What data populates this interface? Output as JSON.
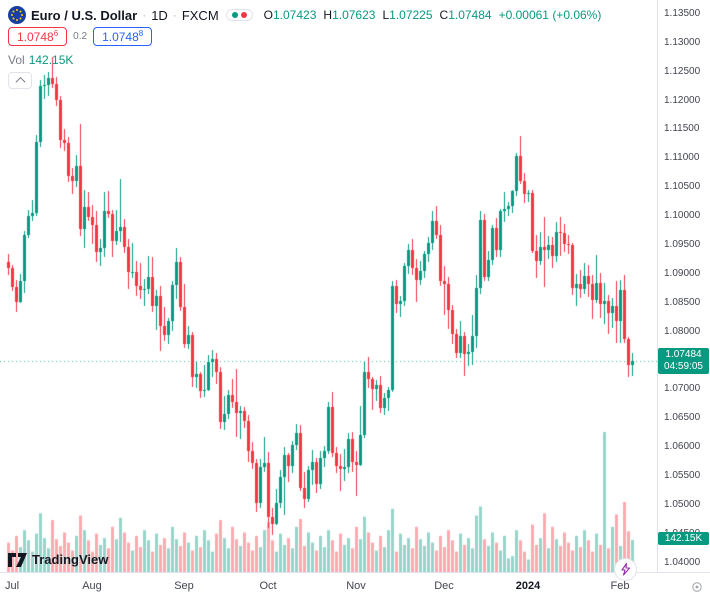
{
  "header": {
    "symbol": "Euro / U.S. Dollar",
    "sep": "·",
    "interval": "1D",
    "exchange": "FXCM",
    "ohlc": {
      "o_label": "O",
      "o": "1.07423",
      "h_label": "H",
      "h": "1.07623",
      "l_label": "L",
      "l": "1.07225",
      "c_label": "C",
      "c": "1.07484",
      "change": "+0.00061 (+0.06%)"
    },
    "sell": {
      "value": "1.0748",
      "sup": "6"
    },
    "spread": "0.2",
    "buy": {
      "value": "1.0748",
      "sup": "8"
    },
    "vol_label": "Vol",
    "vol_value": "142.15K"
  },
  "badges": {
    "last_price": "1.07484",
    "countdown": "04:59:05",
    "volume": "142.15K"
  },
  "footer": {
    "logo_text": "TradingView"
  },
  "colors": {
    "up": "#089981",
    "down": "#f23645",
    "sell": "#f23645",
    "buy": "#2962ff",
    "badge": "#089981",
    "bolt": "#9c27b0"
  },
  "chart_data": {
    "type": "candlestick",
    "title": "Euro / U.S. Dollar 1D FXCM",
    "legend_position": "top-left",
    "grid": false,
    "last_price": 1.07484,
    "y_axis": {
      "min": 1.0384,
      "max": 1.1374,
      "tick_labels": [
        "1.13500",
        "1.13000",
        "1.12500",
        "1.12000",
        "1.11500",
        "1.11000",
        "1.10500",
        "1.10000",
        "1.09500",
        "1.09000",
        "1.08500",
        "1.08000",
        "1.07500",
        "1.07000",
        "1.06500",
        "1.06000",
        "1.05500",
        "1.05000",
        "1.04500",
        "1.04000"
      ]
    },
    "x_ticks": [
      {
        "label": "Jul",
        "index": 0
      },
      {
        "label": "Aug",
        "index": 21
      },
      {
        "label": "Sep",
        "index": 44
      },
      {
        "label": "Oct",
        "index": 65
      },
      {
        "label": "Nov",
        "index": 87
      },
      {
        "label": "Dec",
        "index": 109
      },
      {
        "label": "2024",
        "index": 130,
        "major": true
      },
      {
        "label": "Feb",
        "index": 153
      }
    ],
    "candles": [
      [
        1.092,
        1.0935,
        1.0898,
        1.091
      ],
      [
        1.091,
        1.0916,
        1.087,
        1.0878
      ],
      [
        1.0878,
        1.089,
        1.0834,
        1.0852
      ],
      [
        1.0852,
        1.0899,
        1.085,
        1.0888
      ],
      [
        1.0888,
        1.0975,
        1.0867,
        1.0968
      ],
      [
        1.0968,
        1.101,
        1.0962,
        1.1
      ],
      [
        1.1,
        1.1027,
        1.0992,
        1.1005
      ],
      [
        1.1005,
        1.114,
        1.1001,
        1.1128
      ],
      [
        1.1128,
        1.1236,
        1.112,
        1.1226
      ],
      [
        1.1226,
        1.1245,
        1.1203,
        1.1227
      ],
      [
        1.1227,
        1.1249,
        1.1208,
        1.1239
      ],
      [
        1.1239,
        1.1276,
        1.1222,
        1.1228
      ],
      [
        1.1228,
        1.124,
        1.119,
        1.1201
      ],
      [
        1.1201,
        1.1207,
        1.1118,
        1.1131
      ],
      [
        1.1131,
        1.115,
        1.1112,
        1.1126
      ],
      [
        1.1126,
        1.1137,
        1.1059,
        1.107
      ],
      [
        1.107,
        1.1084,
        1.1039,
        1.106
      ],
      [
        1.106,
        1.1106,
        1.105,
        1.1087
      ],
      [
        1.1087,
        1.1159,
        1.0966,
        1.0977
      ],
      [
        1.0977,
        1.1046,
        1.0944,
        1.1016
      ],
      [
        1.1016,
        1.1041,
        1.0992,
        1.0998
      ],
      [
        1.0998,
        1.102,
        1.0952,
        1.0984
      ],
      [
        1.0984,
        1.1008,
        1.092,
        1.0937
      ],
      [
        1.0937,
        1.096,
        1.0913,
        1.0944
      ],
      [
        1.0944,
        1.1042,
        1.093,
        1.1009
      ],
      [
        1.1009,
        1.1044,
        1.0996,
        1.1003
      ],
      [
        1.1003,
        1.101,
        1.0929,
        1.0957
      ],
      [
        1.0957,
        1.1011,
        1.095,
        1.0975
      ],
      [
        1.0975,
        1.1064,
        1.0955,
        1.0981
      ],
      [
        1.0981,
        1.0995,
        1.0936,
        1.0947
      ],
      [
        1.0947,
        1.096,
        1.0874,
        1.0904
      ],
      [
        1.0904,
        1.0953,
        1.0892,
        1.0904
      ],
      [
        1.0904,
        1.0922,
        1.0862,
        1.0879
      ],
      [
        1.0879,
        1.0918,
        1.0856,
        1.0872
      ],
      [
        1.0872,
        1.0891,
        1.0845,
        1.0873
      ],
      [
        1.0873,
        1.0931,
        1.0866,
        1.0894
      ],
      [
        1.0894,
        1.093,
        1.0834,
        1.0845
      ],
      [
        1.0845,
        1.0872,
        1.0802,
        1.0861
      ],
      [
        1.0861,
        1.0879,
        1.0766,
        1.081
      ],
      [
        1.081,
        1.0842,
        1.0783,
        1.0794
      ],
      [
        1.0794,
        1.0823,
        1.0779,
        1.0818
      ],
      [
        1.0818,
        1.0888,
        1.0801,
        1.088
      ],
      [
        1.088,
        1.0945,
        1.0856,
        1.0921
      ],
      [
        1.0921,
        1.0929,
        1.0835,
        1.0843
      ],
      [
        1.0843,
        1.0882,
        1.0772,
        1.0779
      ],
      [
        1.0779,
        1.081,
        1.077,
        1.0794
      ],
      [
        1.0794,
        1.08,
        1.0705,
        1.0722
      ],
      [
        1.0722,
        1.0748,
        1.0702,
        1.0726
      ],
      [
        1.0726,
        1.0731,
        1.0686,
        1.0697
      ],
      [
        1.0697,
        1.0742,
        1.0687,
        1.0699
      ],
      [
        1.0699,
        1.0759,
        1.0698,
        1.0748
      ],
      [
        1.0748,
        1.0768,
        1.0721,
        1.0753
      ],
      [
        1.0753,
        1.0763,
        1.071,
        1.073
      ],
      [
        1.073,
        1.0738,
        1.0632,
        1.0643
      ],
      [
        1.0643,
        1.0688,
        1.063,
        1.0657
      ],
      [
        1.0657,
        1.0699,
        1.0649,
        1.0691
      ],
      [
        1.0691,
        1.0718,
        1.0668,
        1.0679
      ],
      [
        1.0679,
        1.0736,
        1.0617,
        1.066
      ],
      [
        1.066,
        1.0672,
        1.0615,
        1.0662
      ],
      [
        1.0662,
        1.067,
        1.0633,
        1.0645
      ],
      [
        1.0645,
        1.0656,
        1.0575,
        1.0593
      ],
      [
        1.0593,
        1.0609,
        1.0562,
        1.0572
      ],
      [
        1.0572,
        1.058,
        1.0488,
        1.0503
      ],
      [
        1.0503,
        1.0579,
        1.0495,
        1.0566
      ],
      [
        1.0566,
        1.0617,
        1.0557,
        1.0573
      ],
      [
        1.0573,
        1.0592,
        1.046,
        1.0479
      ],
      [
        1.0479,
        1.0494,
        1.0448,
        1.0467
      ],
      [
        1.0467,
        1.0528,
        1.0465,
        1.0504
      ],
      [
        1.0504,
        1.056,
        1.0495,
        1.0549
      ],
      [
        1.0549,
        1.0601,
        1.0483,
        1.0586
      ],
      [
        1.0586,
        1.059,
        1.054,
        1.0567
      ],
      [
        1.0567,
        1.061,
        1.0555,
        1.0603
      ],
      [
        1.0603,
        1.064,
        1.0595,
        1.0625
      ],
      [
        1.0625,
        1.0639,
        1.0525,
        1.0529
      ],
      [
        1.0529,
        1.0557,
        1.0495,
        1.051
      ],
      [
        1.051,
        1.0567,
        1.0505,
        1.056
      ],
      [
        1.056,
        1.0595,
        1.0535,
        1.0575
      ],
      [
        1.0575,
        1.0582,
        1.0521,
        1.0536
      ],
      [
        1.0536,
        1.0594,
        1.0527,
        1.0582
      ],
      [
        1.0582,
        1.0602,
        1.0565,
        1.0594
      ],
      [
        1.0594,
        1.0678,
        1.0589,
        1.0669
      ],
      [
        1.0669,
        1.0695,
        1.0583,
        1.059
      ],
      [
        1.059,
        1.06,
        1.0555,
        1.0567
      ],
      [
        1.0567,
        1.0589,
        1.0524,
        1.0562
      ],
      [
        1.0562,
        1.0597,
        1.0541,
        1.0565
      ],
      [
        1.0565,
        1.0625,
        1.0556,
        1.0615
      ],
      [
        1.0615,
        1.0626,
        1.0557,
        1.0575
      ],
      [
        1.0575,
        1.0593,
        1.0516,
        1.057
      ],
      [
        1.057,
        1.0671,
        1.0568,
        1.0621
      ],
      [
        1.0621,
        1.0747,
        1.0616,
        1.0731
      ],
      [
        1.0731,
        1.0756,
        1.0702,
        1.0718
      ],
      [
        1.0718,
        1.0722,
        1.0664,
        1.07
      ],
      [
        1.07,
        1.0716,
        1.068,
        1.0708
      ],
      [
        1.0708,
        1.0724,
        1.066,
        1.0667
      ],
      [
        1.0667,
        1.0694,
        1.0656,
        1.0685
      ],
      [
        1.0685,
        1.0705,
        1.0663,
        1.0699
      ],
      [
        1.0699,
        1.0887,
        1.0696,
        1.0879
      ],
      [
        1.0879,
        1.0889,
        1.0833,
        1.0848
      ],
      [
        1.0848,
        1.0862,
        1.0825,
        1.0853
      ],
      [
        1.0853,
        1.0919,
        1.0845,
        1.0914
      ],
      [
        1.0914,
        1.0952,
        1.0899,
        1.0941
      ],
      [
        1.0941,
        1.0961,
        1.0898,
        1.091
      ],
      [
        1.091,
        1.0926,
        1.0852,
        1.0889
      ],
      [
        1.0889,
        1.0923,
        1.088,
        1.0905
      ],
      [
        1.0905,
        1.094,
        1.0893,
        1.0935
      ],
      [
        1.0935,
        1.0963,
        1.092,
        1.0953
      ],
      [
        1.0953,
        1.1009,
        1.0941,
        1.0992
      ],
      [
        1.0992,
        1.1017,
        1.0961,
        1.0967
      ],
      [
        1.0967,
        1.0985,
        1.0879,
        1.0888
      ],
      [
        1.0888,
        1.0913,
        1.0828,
        1.0882
      ],
      [
        1.0882,
        1.0895,
        1.0804,
        1.0838
      ],
      [
        1.0838,
        1.0846,
        1.0778,
        1.0796
      ],
      [
        1.0796,
        1.0804,
        1.0755,
        1.0763
      ],
      [
        1.0763,
        1.0818,
        1.0754,
        1.0793
      ],
      [
        1.0793,
        1.08,
        1.0724,
        1.0761
      ],
      [
        1.0761,
        1.0779,
        1.0741,
        1.0765
      ],
      [
        1.0765,
        1.0828,
        1.0742,
        1.0793
      ],
      [
        1.0793,
        1.0898,
        1.0772,
        1.0875
      ],
      [
        1.0875,
        1.1009,
        1.0866,
        1.0993
      ],
      [
        1.0993,
        1.1004,
        1.0888,
        1.0895
      ],
      [
        1.0895,
        1.094,
        1.0887,
        1.0924
      ],
      [
        1.0924,
        1.0985,
        1.0915,
        1.098
      ],
      [
        1.098,
        1.0996,
        1.093,
        1.0941
      ],
      [
        1.0941,
        1.1012,
        1.093,
        1.1009
      ],
      [
        1.1009,
        1.1041,
        1.0989,
        1.1013
      ],
      [
        1.1013,
        1.1024,
        1.1,
        1.1017
      ],
      [
        1.1017,
        1.1046,
        1.1005,
        1.1043
      ],
      [
        1.1043,
        1.111,
        1.1035,
        1.1104
      ],
      [
        1.1104,
        1.1139,
        1.1055,
        1.1061
      ],
      [
        1.1061,
        1.1075,
        1.1023,
        1.1038
      ],
      [
        1.1038,
        1.1046,
        1.1025,
        1.104
      ],
      [
        1.104,
        1.1046,
        1.0936,
        1.094
      ],
      [
        1.094,
        1.0968,
        1.0893,
        1.0922
      ],
      [
        1.0922,
        1.0972,
        1.0915,
        1.0946
      ],
      [
        1.0946,
        1.0998,
        1.0877,
        1.0941
      ],
      [
        1.0941,
        1.0966,
        1.0926,
        1.095
      ],
      [
        1.095,
        1.0963,
        1.0911,
        1.0931
      ],
      [
        1.0931,
        1.0989,
        1.092,
        1.0973
      ],
      [
        1.0973,
        1.0999,
        1.0931,
        1.097
      ],
      [
        1.097,
        1.0987,
        1.0937,
        1.0951
      ],
      [
        1.0951,
        1.0967,
        1.0934,
        1.095
      ],
      [
        1.095,
        1.0953,
        1.0863,
        1.0875
      ],
      [
        1.0875,
        1.0899,
        1.0845,
        1.0883
      ],
      [
        1.0883,
        1.0906,
        1.0858,
        1.0874
      ],
      [
        1.0874,
        1.0919,
        1.0866,
        1.0897
      ],
      [
        1.0897,
        1.0915,
        1.086,
        1.0882
      ],
      [
        1.0882,
        1.0898,
        1.0822,
        1.0855
      ],
      [
        1.0855,
        1.0932,
        1.0849,
        1.0885
      ],
      [
        1.0885,
        1.0901,
        1.0823,
        1.0847
      ],
      [
        1.0847,
        1.0885,
        1.0813,
        1.0853
      ],
      [
        1.0853,
        1.0863,
        1.0796,
        1.0833
      ],
      [
        1.0833,
        1.0858,
        1.0807,
        1.0844
      ],
      [
        1.0844,
        1.0887,
        1.078,
        1.0818
      ],
      [
        1.0818,
        1.0889,
        1.078,
        1.0872
      ],
      [
        1.0872,
        1.0898,
        1.0781,
        1.0788
      ],
      [
        1.0788,
        1.079,
        1.0722,
        1.0742
      ],
      [
        1.07423,
        1.07623,
        1.07225,
        1.07484
      ]
    ],
    "volumes": [
      130,
      95,
      160,
      110,
      185,
      140,
      90,
      170,
      260,
      150,
      105,
      230,
      145,
      115,
      175,
      130,
      95,
      160,
      250,
      185,
      140,
      90,
      170,
      120,
      150,
      105,
      200,
      145,
      240,
      175,
      130,
      95,
      160,
      110,
      185,
      140,
      90,
      170,
      120,
      150,
      105,
      200,
      145,
      115,
      175,
      130,
      95,
      160,
      110,
      185,
      140,
      90,
      170,
      230,
      150,
      105,
      200,
      145,
      115,
      175,
      130,
      95,
      160,
      110,
      185,
      220,
      140,
      90,
      170,
      120,
      150,
      105,
      200,
      235,
      115,
      175,
      130,
      95,
      160,
      110,
      185,
      140,
      90,
      170,
      120,
      150,
      105,
      200,
      145,
      245,
      175,
      130,
      95,
      160,
      110,
      185,
      280,
      90,
      170,
      120,
      150,
      105,
      200,
      145,
      115,
      175,
      130,
      95,
      160,
      110,
      185,
      140,
      90,
      170,
      120,
      150,
      105,
      250,
      290,
      145,
      115,
      175,
      130,
      95,
      160,
      60,
      70,
      185,
      140,
      90,
      55,
      210,
      120,
      150,
      260,
      105,
      200,
      145,
      115,
      175,
      130,
      95,
      160,
      110,
      185,
      140,
      90,
      170,
      120,
      620,
      105,
      200,
      255,
      115,
      310,
      180,
      142.15
    ],
    "volume_unit": "K"
  }
}
